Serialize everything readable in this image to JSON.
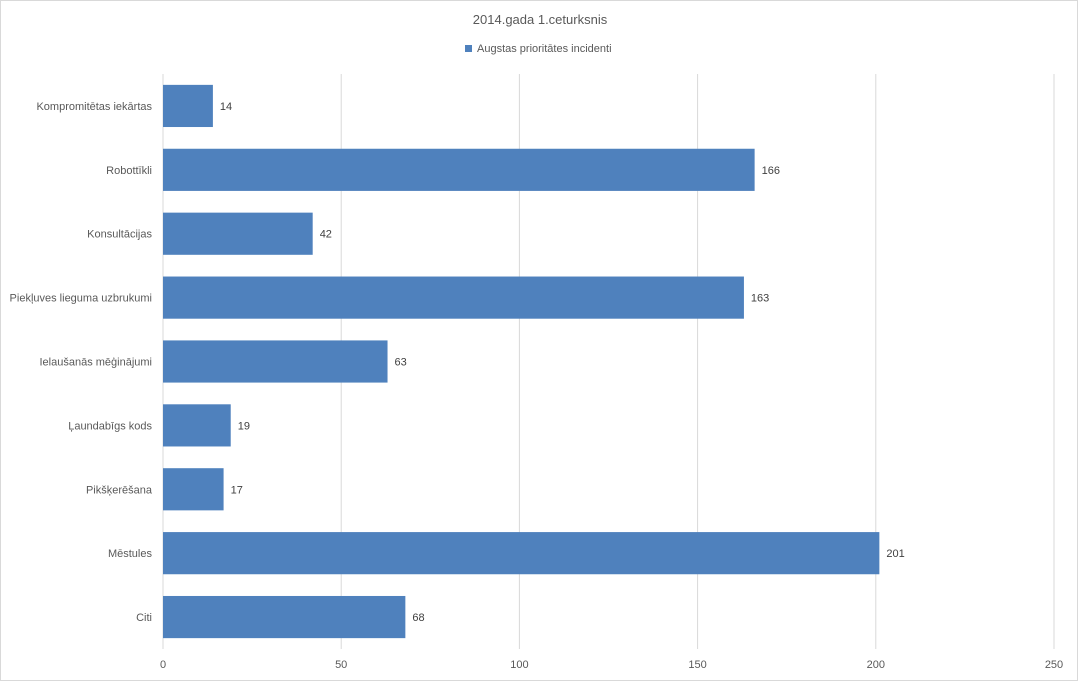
{
  "chart_data": {
    "type": "bar",
    "orientation": "horizontal",
    "title": "2014.gada 1.ceturksnis",
    "categories": [
      "Kompromitētas iekārtas",
      "Robottīkli",
      "Konsultācijas",
      "Piekļuves lieguma uzbrukumi",
      "Ielaušanās mēģinājumi",
      "Ļaundabīgs kods",
      "Pikšķerēšana",
      "Mēstules",
      "Citi"
    ],
    "series": [
      {
        "name": "Augstas prioritātes incidenti",
        "values": [
          14,
          166,
          42,
          163,
          63,
          19,
          17,
          201,
          68
        ],
        "color": "#4f81bd"
      }
    ],
    "xlim": [
      0,
      250
    ],
    "xticks": [
      0,
      50,
      100,
      150,
      200,
      250
    ],
    "grid": true,
    "legend_position": "top",
    "data_labels": true
  }
}
